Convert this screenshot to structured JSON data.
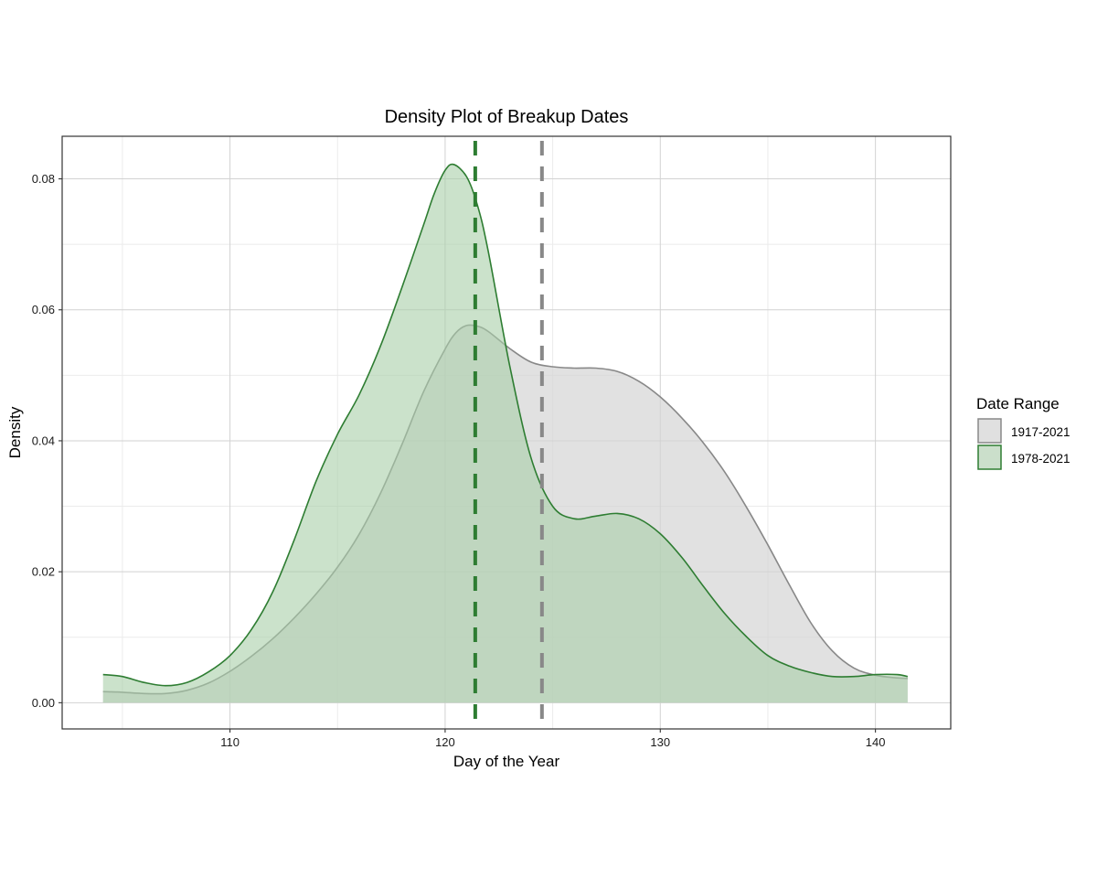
{
  "chart_data": {
    "type": "area",
    "subtype": "density",
    "title": "Density Plot of Breakup Dates",
    "xlabel": "Day of the Year",
    "ylabel": "Density",
    "xlim": [
      102.2,
      143.5
    ],
    "ylim": [
      -0.004,
      0.0865
    ],
    "x_ticks": [
      110,
      120,
      130,
      140
    ],
    "x_tick_labels": [
      "110",
      "120",
      "130",
      "140"
    ],
    "y_ticks": [
      0.0,
      0.02,
      0.04,
      0.06,
      0.08
    ],
    "y_tick_labels": [
      "0.00",
      "0.02",
      "0.04",
      "0.06",
      "0.08"
    ],
    "grid": true,
    "legend": {
      "title": "Date Range",
      "position": "right",
      "entries": [
        "1917-2021",
        "1978-2021"
      ]
    },
    "series": [
      {
        "name": "1917-2021",
        "fill": "#d3d3d3",
        "fill_opacity": 0.68,
        "line": "#888888",
        "mean_line_x": 124.5,
        "mean_line_color": "#888888",
        "x": [
          104.1,
          105,
          106,
          107,
          108,
          109,
          110,
          111,
          112,
          113,
          114,
          115,
          116,
          117,
          118,
          119,
          120,
          120.5,
          121,
          121.5,
          122,
          123,
          124,
          125,
          126,
          127,
          128,
          129,
          130,
          131,
          132,
          133,
          134,
          135,
          136,
          137,
          138,
          139,
          140,
          141,
          141.5
        ],
        "y": [
          0.0017,
          0.0016,
          0.0014,
          0.0014,
          0.0019,
          0.003,
          0.0048,
          0.0071,
          0.0098,
          0.013,
          0.0166,
          0.0207,
          0.0257,
          0.032,
          0.0395,
          0.0475,
          0.054,
          0.0565,
          0.0576,
          0.0575,
          0.0567,
          0.0541,
          0.052,
          0.0513,
          0.0511,
          0.0511,
          0.0506,
          0.0491,
          0.0467,
          0.0435,
          0.0397,
          0.0352,
          0.0299,
          0.0241,
          0.018,
          0.0122,
          0.0079,
          0.0053,
          0.0042,
          0.0038,
          0.0037
        ]
      },
      {
        "name": "1978-2021",
        "fill": "#a9cfa9",
        "fill_opacity": 0.6,
        "line": "#2e7d32",
        "mean_line_x": 121.4,
        "mean_line_color": "#2e7d32",
        "x": [
          104.1,
          105,
          106,
          107,
          108,
          109,
          110,
          111,
          112,
          113,
          114,
          115,
          116,
          117,
          118,
          119,
          119.5,
          120,
          120.4,
          121,
          121.5,
          122,
          123,
          124,
          125,
          126,
          127,
          128,
          129,
          130,
          131,
          132,
          133,
          134,
          135,
          136,
          137,
          138,
          139,
          140,
          141,
          141.5
        ],
        "y": [
          0.0043,
          0.004,
          0.0031,
          0.0026,
          0.0031,
          0.0047,
          0.0072,
          0.0112,
          0.017,
          0.025,
          0.0338,
          0.041,
          0.047,
          0.0545,
          0.0635,
          0.073,
          0.0778,
          0.0813,
          0.0822,
          0.0803,
          0.076,
          0.069,
          0.0515,
          0.0373,
          0.03,
          0.0281,
          0.0285,
          0.0289,
          0.0281,
          0.0258,
          0.0222,
          0.0178,
          0.0136,
          0.0101,
          0.0072,
          0.0056,
          0.0046,
          0.004,
          0.004,
          0.0043,
          0.0043,
          0.004
        ]
      }
    ]
  }
}
